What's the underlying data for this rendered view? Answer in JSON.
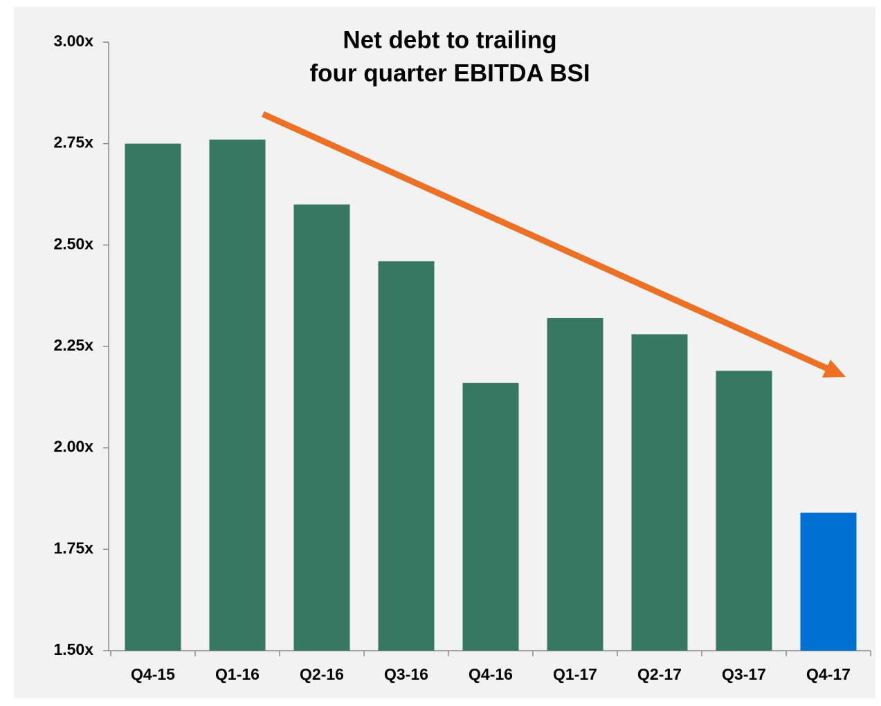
{
  "chart_data": {
    "type": "bar",
    "title": [
      "Net debt to trailing",
      "four quarter EBITDA BSI"
    ],
    "categories": [
      "Q4-15",
      "Q1-16",
      "Q2-16",
      "Q3-16",
      "Q4-16",
      "Q1-17",
      "Q2-17",
      "Q3-17",
      "Q4-17"
    ],
    "values": [
      2.75,
      2.76,
      2.6,
      2.46,
      2.16,
      2.32,
      2.28,
      2.19,
      1.84
    ],
    "colors": [
      "#367862",
      "#367862",
      "#367862",
      "#367862",
      "#367862",
      "#367862",
      "#367862",
      "#367862",
      "#0070d0"
    ],
    "ylim": [
      1.5,
      3.0
    ],
    "yticks": [
      {
        "value": 1.5,
        "label": "1.50x"
      },
      {
        "value": 1.75,
        "label": "1.75x"
      },
      {
        "value": 2.0,
        "label": "2.00x"
      },
      {
        "value": 2.25,
        "label": "2.25x"
      },
      {
        "value": 2.5,
        "label": "2.50x"
      },
      {
        "value": 2.75,
        "label": "2.75x"
      },
      {
        "value": 3.0,
        "label": "3.00x"
      }
    ],
    "grid": false
  }
}
